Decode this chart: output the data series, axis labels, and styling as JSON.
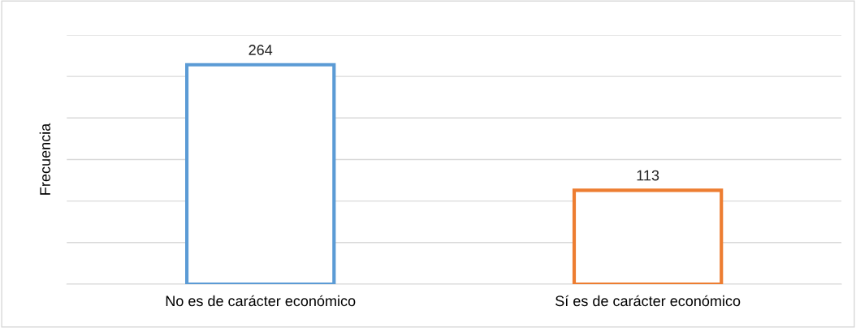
{
  "chart_data": {
    "type": "bar",
    "ylabel": "Frecuencia",
    "categories": [
      "No es de carácter económico",
      "Sí es de carácter económico"
    ],
    "values": [
      264,
      113
    ],
    "colors": [
      "#5b9bd5",
      "#ed7d31"
    ],
    "ylim": [
      0,
      300
    ],
    "yticks": [
      {
        "value": 0,
        "label": null
      },
      {
        "value": 50,
        "label": null
      },
      {
        "value": 100,
        "label": null
      },
      {
        "value": 150,
        "label": null
      },
      {
        "value": 200,
        "label": null
      },
      {
        "value": 250,
        "label": null
      },
      {
        "value": 300,
        "label": null
      }
    ],
    "grid": "y",
    "tick_labels": "x",
    "data_labels": true
  }
}
